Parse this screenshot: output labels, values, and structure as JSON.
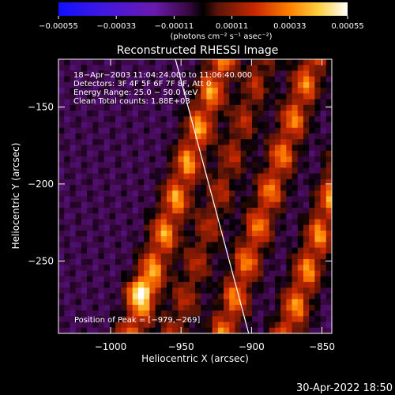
{
  "chart_data": {
    "type": "heatmap",
    "title": "Reconstructed RHESSI Image",
    "xlabel": "Heliocentric X (arcsec)",
    "ylabel": "Heliocentric Y (arcsec)",
    "xlim": [
      -1037,
      -843
    ],
    "ylim": [
      -297,
      -119
    ],
    "xticks": [
      -1000,
      -950,
      -900,
      -850
    ],
    "xtick_labels": [
      "−1000",
      "−950",
      "−900",
      "−850"
    ],
    "yticks": [
      -150,
      -200,
      -250
    ],
    "ytick_labels": [
      "−150",
      "−200",
      "−250"
    ],
    "colorbar": {
      "range": [
        -0.00055,
        0.00055
      ],
      "ticks": [
        -0.00055,
        -0.00033,
        -0.00011,
        0.00011,
        0.00033,
        0.00055
      ],
      "tick_labels": [
        "−0.00055",
        "−0.00033",
        "−0.00011",
        "0.00011",
        "0.00033",
        "0.00055"
      ],
      "unit_label": "(photons cm⁻² s⁻¹ asec⁻²)"
    },
    "annotations": [
      "18−Apr−2003 11:04:24.000 to 11:06:40.000",
      "Detectors: 3F 4F 5F 6F 7F 8F, Att 0",
      "Energy Range: 25.0 − 50.0 keV",
      "Clean    Total counts: 1.88E+03"
    ],
    "peak_label": "Position of Peak = [−979,−269]",
    "peak": [
      -979,
      -269
    ],
    "limb_line": [
      [
        -954,
        -119
      ],
      [
        -902,
        -297
      ]
    ],
    "stripes": [
      {
        "x_at_ymin": -985,
        "slope": -0.36,
        "amp": 1.0
      },
      {
        "x_at_ymin": -955,
        "slope": -0.36,
        "amp": 0.55
      },
      {
        "x_at_ymin": -920,
        "slope": -0.36,
        "amp": 0.9
      },
      {
        "x_at_ymin": -875,
        "slope": -0.36,
        "amp": 0.95
      }
    ],
    "colors": {
      "background": "#000000",
      "text": "#ffffff",
      "limb": "#ffffff"
    }
  },
  "footer": {
    "timestamp": "30-Apr-2022 18:50"
  }
}
